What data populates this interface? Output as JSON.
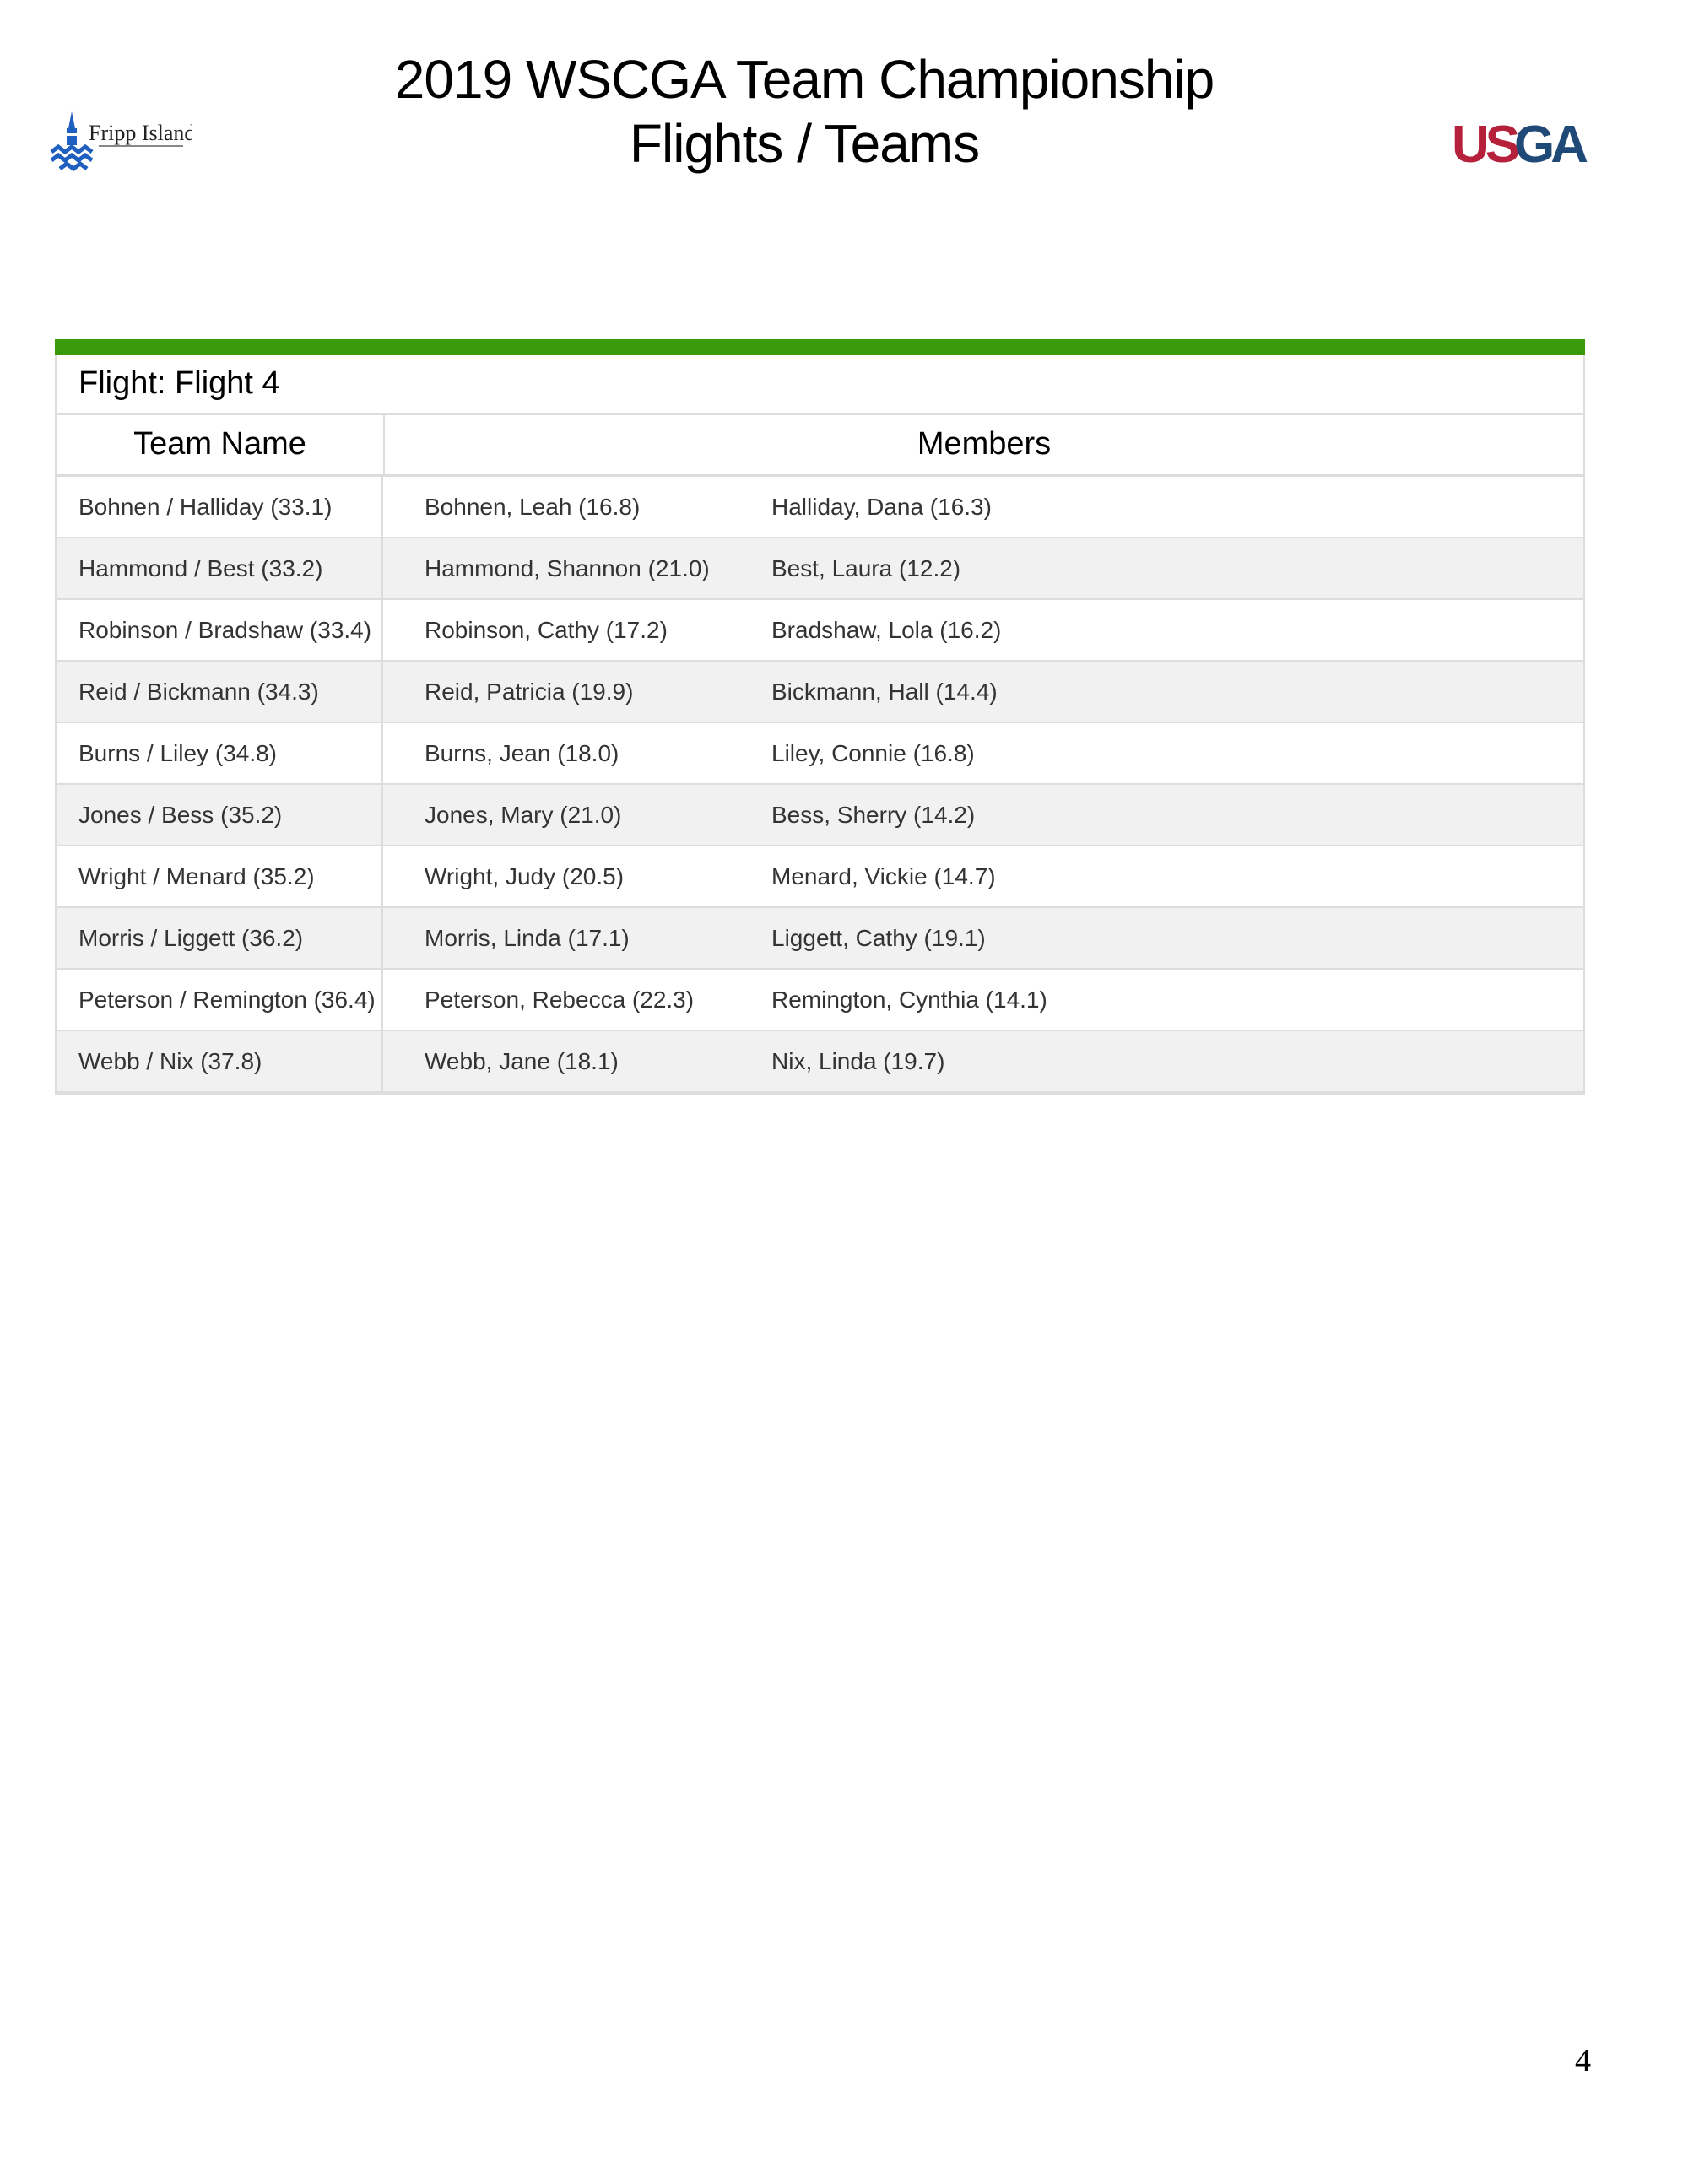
{
  "header": {
    "title_line1": "2019 WSCGA Team Championship",
    "title_line2": "Flights / Teams",
    "left_logo": "Fripp Island",
    "right_logo": "USGA"
  },
  "colors": {
    "flight_bar": "#3a9a0a",
    "usga_red": "#b5213a",
    "usga_blue": "#1f4a78",
    "fripp_blue": "#1f5fbf"
  },
  "flight": {
    "label": "Flight: Flight 4"
  },
  "columns": {
    "team": "Team Name",
    "members": "Members"
  },
  "rows": [
    {
      "team": "Bohnen / Halliday (33.1)",
      "m1": "Bohnen, Leah (16.8)",
      "m2": "Halliday, Dana (16.3)"
    },
    {
      "team": "Hammond / Best (33.2)",
      "m1": "Hammond, Shannon (21.0)",
      "m2": "Best, Laura (12.2)"
    },
    {
      "team": "Robinson / Bradshaw (33.4)",
      "m1": "Robinson, Cathy (17.2)",
      "m2": "Bradshaw, Lola (16.2)"
    },
    {
      "team": "Reid / Bickmann (34.3)",
      "m1": "Reid, Patricia (19.9)",
      "m2": "Bickmann, Hall (14.4)"
    },
    {
      "team": "Burns / Liley (34.8)",
      "m1": "Burns, Jean (18.0)",
      "m2": "Liley, Connie (16.8)"
    },
    {
      "team": "Jones / Bess (35.2)",
      "m1": "Jones, Mary (21.0)",
      "m2": "Bess, Sherry (14.2)"
    },
    {
      "team": "Wright / Menard (35.2)",
      "m1": "Wright, Judy (20.5)",
      "m2": "Menard, Vickie (14.7)"
    },
    {
      "team": "Morris / Liggett (36.2)",
      "m1": "Morris, Linda (17.1)",
      "m2": "Liggett, Cathy (19.1)"
    },
    {
      "team": "Peterson / Remington (36.4)",
      "m1": "Peterson, Rebecca (22.3)",
      "m2": "Remington, Cynthia (14.1)"
    },
    {
      "team": "Webb / Nix (37.8)",
      "m1": "Webb, Jane (18.1)",
      "m2": "Nix, Linda (19.7)"
    }
  ],
  "page_number": "4"
}
